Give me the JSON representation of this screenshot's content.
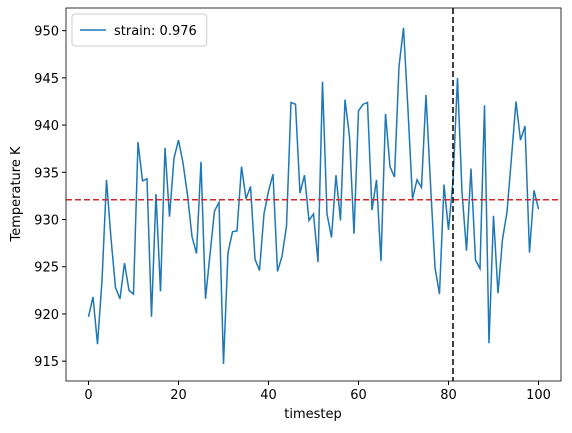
{
  "chart_data": {
    "type": "line",
    "x_label": "timestep",
    "y_label": "Temperature K",
    "x": [
      0,
      1,
      2,
      3,
      4,
      5,
      6,
      7,
      8,
      9,
      10,
      11,
      12,
      13,
      14,
      15,
      16,
      17,
      18,
      19,
      20,
      21,
      22,
      23,
      24,
      25,
      26,
      27,
      28,
      29,
      30,
      31,
      32,
      33,
      34,
      35,
      36,
      37,
      38,
      39,
      40,
      41,
      42,
      43,
      44,
      45,
      46,
      47,
      48,
      49,
      50,
      51,
      52,
      53,
      54,
      55,
      56,
      57,
      58,
      59,
      60,
      61,
      62,
      63,
      64,
      65,
      66,
      67,
      68,
      69,
      70,
      71,
      72,
      73,
      74,
      75,
      76,
      77,
      78,
      79,
      80,
      81,
      82,
      83,
      84,
      85,
      86,
      87,
      88,
      89,
      90,
      91,
      92,
      93,
      94,
      95,
      96,
      97,
      98,
      99,
      100
    ],
    "series": [
      {
        "name": "strain: 0.976",
        "color": "#1f77b4",
        "values": [
          919.7,
          921.8,
          916.8,
          923.5,
          934.2,
          928,
          922.8,
          921.6,
          925.4,
          922.5,
          922.1,
          938.2,
          934.1,
          934.3,
          919.7,
          932.7,
          922.4,
          937.6,
          930.3,
          936.5,
          938.4,
          936,
          932.6,
          928.2,
          926.4,
          936.1,
          921.6,
          926.3,
          930.9,
          931.8,
          914.7,
          926.5,
          928.7,
          928.8,
          935.6,
          932.2,
          933.5,
          925.8,
          924.6,
          930.6,
          933,
          934.8,
          924.5,
          926.1,
          929.3,
          942.4,
          942.2,
          932.8,
          934.7,
          929.9,
          930.6,
          925.5,
          944.6,
          930.6,
          928.1,
          934.7,
          929.9,
          942.7,
          938.8,
          928.5,
          941.5,
          942.2,
          942.4,
          931,
          934.2,
          925.6,
          941.2,
          935.6,
          934.5,
          946.2,
          950.3,
          941.6,
          932.2,
          934.2,
          933.4,
          943.2,
          933.8,
          924.9,
          922.1,
          933.7,
          928.9,
          934.1,
          945,
          932.9,
          926.7,
          935.4,
          925.7,
          924.8,
          942.1,
          916.9,
          930.4,
          922.2,
          927.9,
          930.8,
          936.6,
          942.5,
          938.4,
          939.9,
          926.5,
          933.1,
          931.1
        ]
      }
    ],
    "hlines": [
      {
        "value": 932.1,
        "color": "#d62728"
      }
    ],
    "vlines": [
      {
        "value": 81,
        "color": "#000000"
      }
    ],
    "xlim": [
      -5,
      105
    ],
    "xticks": [
      0,
      20,
      40,
      60,
      80,
      100
    ],
    "ylim": [
      912.9,
      952.4
    ],
    "yticks": [
      915,
      920,
      925,
      930,
      935,
      940,
      945,
      950
    ],
    "legend": "upper left"
  }
}
